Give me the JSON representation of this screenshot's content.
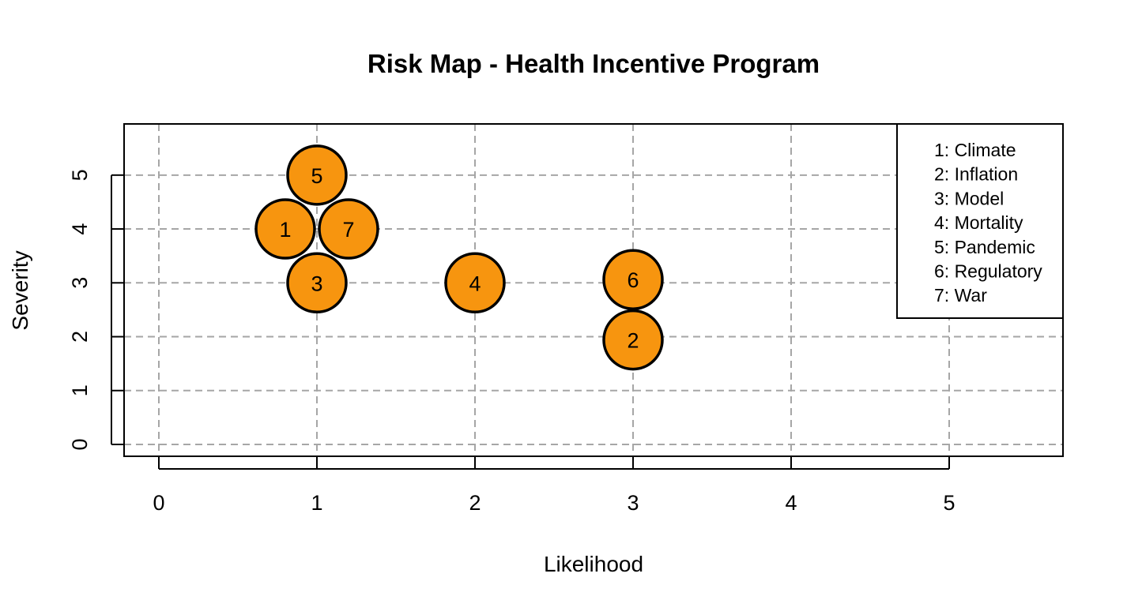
{
  "chart_data": {
    "type": "scatter",
    "title": "Risk Map - Health Incentive Program",
    "xlabel": "Likelihood",
    "ylabel": "Severity",
    "xlim": [
      -0.22,
      5.72
    ],
    "ylim": [
      -0.22,
      5.95
    ],
    "xticks": [
      "0",
      "1",
      "2",
      "3",
      "4",
      "5"
    ],
    "yticks": [
      "0",
      "1",
      "2",
      "3",
      "4",
      "5"
    ],
    "grid": true,
    "legend_position": "top-right",
    "marker_color": "#F7950F",
    "points": [
      {
        "id": "1",
        "x": 0.8,
        "y": 4.0
      },
      {
        "id": "2",
        "x": 3.0,
        "y": 1.94
      },
      {
        "id": "3",
        "x": 1.0,
        "y": 3.0
      },
      {
        "id": "4",
        "x": 2.0,
        "y": 3.0
      },
      {
        "id": "5",
        "x": 1.0,
        "y": 5.0
      },
      {
        "id": "6",
        "x": 3.0,
        "y": 3.06
      },
      {
        "id": "7",
        "x": 1.2,
        "y": 4.0
      }
    ],
    "legend": [
      "1: Climate",
      "2: Inflation",
      "3: Model",
      "4: Mortality",
      "5: Pandemic",
      "6: Regulatory",
      "7: War"
    ]
  }
}
